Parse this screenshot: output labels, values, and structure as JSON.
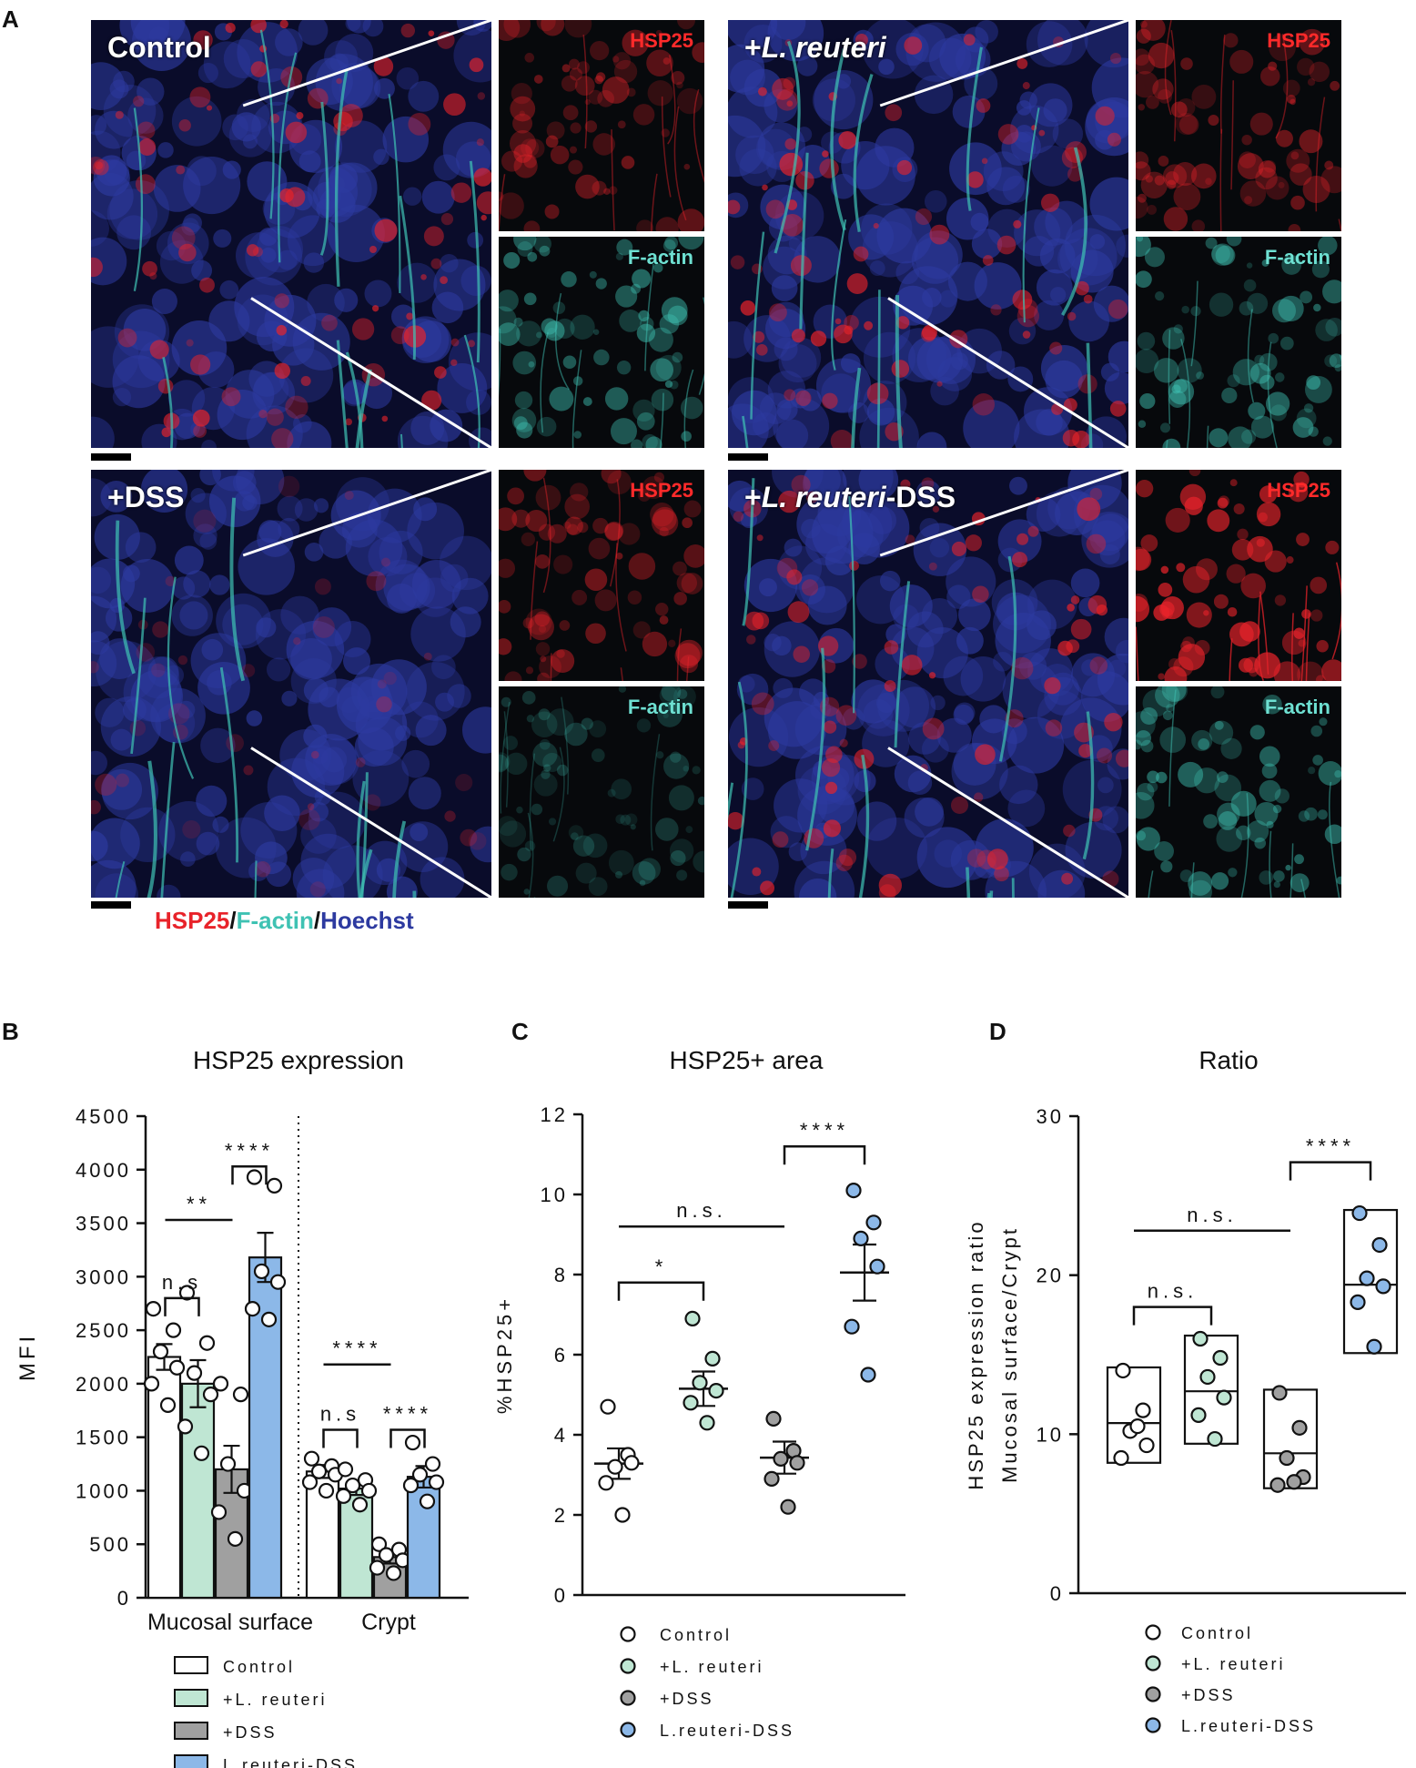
{
  "panel_labels": {
    "a": "A",
    "b": "B",
    "c": "C",
    "d": "D"
  },
  "micrographs": [
    {
      "id": "control",
      "title": "Control",
      "title_parts": [
        {
          "t": "Control",
          "i": false
        }
      ],
      "inset_top": "HSP25",
      "inset_bottom": "F-actin"
    },
    {
      "id": "lreuteri",
      "title": "+L. reuteri",
      "title_parts": [
        {
          "t": "+",
          "i": false
        },
        {
          "t": "L. reuteri",
          "i": true
        }
      ],
      "inset_top": "HSP25",
      "inset_bottom": "F-actin"
    },
    {
      "id": "dss",
      "title": "+DSS",
      "title_parts": [
        {
          "t": "+DSS",
          "i": false
        }
      ],
      "inset_top": "HSP25",
      "inset_bottom": "F-actin"
    },
    {
      "id": "lreuteri_dss",
      "title": "+L. reuteri-DSS",
      "title_parts": [
        {
          "t": "+",
          "i": false
        },
        {
          "t": "L. reuteri",
          "i": true
        },
        {
          "t": "-DSS",
          "i": false
        }
      ],
      "inset_top": "HSP25",
      "inset_bottom": "F-actin"
    }
  ],
  "stain_legend": {
    "hsp": "HSP25",
    "sep1": "/",
    "factin": "F-actin",
    "sep2": "/",
    "hoechst": "Hoechst"
  },
  "colors": {
    "hsp": "#e8232a",
    "factin": "#3fc2b3",
    "hoechst": "#2d3aa0",
    "control": "#ffffff",
    "lreuteri": "#bfe6d3",
    "dss": "#a0a0a0",
    "lreuteri_dss": "#8cb8e8"
  },
  "chart_data": [
    {
      "panel": "B",
      "type": "bar",
      "title": "HSP25 expression",
      "ylabel": "MFI",
      "ylim": [
        0,
        4500
      ],
      "yticks": [
        0,
        500,
        1000,
        1500,
        2000,
        2500,
        3000,
        3500,
        4000,
        4500
      ],
      "groups": [
        "Mucosal surface",
        "Crypt"
      ],
      "series": [
        {
          "name": "Control",
          "values": [
            2250,
            1180
          ],
          "sem": [
            120,
            60
          ],
          "points": [
            [
              2700,
              2500,
              2300,
              2150,
              2000,
              1800
            ],
            [
              1300,
              1230,
              1180,
              1150,
              1080,
              1000
            ]
          ]
        },
        {
          "name": "+L. reuteri",
          "values": [
            2000,
            1020
          ],
          "sem": [
            220,
            60
          ],
          "points": [
            [
              2850,
              2380,
              2100,
              1900,
              1600,
              1350
            ],
            [
              1200,
              1100,
              1050,
              1000,
              950,
              870
            ]
          ]
        },
        {
          "name": "+DSS",
          "values": [
            1200,
            380
          ],
          "sem": [
            220,
            60
          ],
          "points": [
            [
              2000,
              1900,
              1250,
              1000,
              800,
              550
            ],
            [
              500,
              450,
              400,
              350,
              280,
              230
            ]
          ]
        },
        {
          "name": "L.reuteri-DSS",
          "values": [
            3180,
            1130
          ],
          "sem": [
            230,
            100
          ],
          "points": [
            [
              3930,
              3850,
              3050,
              2950,
              2700,
              2600
            ],
            [
              1450,
              1250,
              1150,
              1080,
              1050,
              900
            ]
          ]
        }
      ],
      "annotations": [
        {
          "text": "n.s",
          "x0": 0,
          "x1": 1,
          "group": 0,
          "y": 2800,
          "bracket": true
        },
        {
          "text": "**",
          "x0": 0,
          "x1": 2,
          "group": 0,
          "y": 3530,
          "bracket": false
        },
        {
          "text": "****",
          "x0": 2,
          "x1": 3,
          "group": 0,
          "y": 4030,
          "bracket": true
        },
        {
          "text": "n.s",
          "x0": 0,
          "x1": 1,
          "group": 1,
          "y": 1570,
          "bracket": true
        },
        {
          "text": "****",
          "x0": 0,
          "x1": 2,
          "group": 1,
          "y": 2180,
          "bracket": false
        },
        {
          "text": "****",
          "x0": 2,
          "x1": 3,
          "group": 1,
          "y": 1570,
          "bracket": true
        }
      ]
    },
    {
      "panel": "C",
      "type": "scatter",
      "title": "HSP25+ area",
      "ylabel": "%HSP25+",
      "ylim": [
        0,
        12
      ],
      "yticks": [
        0,
        2,
        4,
        6,
        8,
        10,
        12
      ],
      "categories": [
        "Control",
        "+L. reuteri",
        "+DSS",
        "L.reuteri-DSS"
      ],
      "series": [
        {
          "name": "Control",
          "mean": 3.28,
          "sem": 0.38,
          "points": [
            4.7,
            3.5,
            3.2,
            3.3,
            2.8,
            2.0
          ]
        },
        {
          "name": "+L. reuteri",
          "mean": 5.15,
          "sem": 0.43,
          "points": [
            6.9,
            5.9,
            5.3,
            5.1,
            4.8,
            4.3
          ]
        },
        {
          "name": "+DSS",
          "mean": 3.43,
          "sem": 0.4,
          "points": [
            4.4,
            3.6,
            3.4,
            3.3,
            2.9,
            2.2
          ]
        },
        {
          "name": "L.reuteri-DSS",
          "mean": 8.05,
          "sem": 0.7,
          "points": [
            10.1,
            9.3,
            8.9,
            8.2,
            6.7,
            5.5
          ]
        }
      ],
      "annotations": [
        {
          "text": "*",
          "x0": 0,
          "x1": 1,
          "y": 7.8,
          "bracket": true
        },
        {
          "text": "n.s.",
          "x0": 0,
          "x1": 2,
          "y": 9.2,
          "bracket": false
        },
        {
          "text": "****",
          "x0": 2,
          "x1": 3,
          "y": 11.2,
          "bracket": true
        }
      ]
    },
    {
      "panel": "D",
      "type": "box",
      "title": "Ratio",
      "ylabel": "Mucosal surface/Crypt",
      "ylabel2": "HSP25 expression ratio",
      "ylim": [
        0,
        30
      ],
      "yticks": [
        0,
        10,
        20,
        30
      ],
      "categories": [
        "Control",
        "+L. reuteri",
        "+DSS",
        "L.reuteri-DSS"
      ],
      "series": [
        {
          "name": "Control",
          "min": 8.2,
          "median": 10.7,
          "max": 14.2,
          "points": [
            14.0,
            11.5,
            10.2,
            9.3,
            8.5,
            10.5
          ]
        },
        {
          "name": "+L. reuteri",
          "min": 9.4,
          "median": 12.7,
          "max": 16.2,
          "points": [
            16.0,
            14.8,
            13.6,
            12.3,
            11.2,
            9.7
          ]
        },
        {
          "name": "+DSS",
          "min": 6.6,
          "median": 8.8,
          "max": 12.8,
          "points": [
            12.6,
            10.4,
            8.5,
            7.3,
            6.8,
            7.0
          ]
        },
        {
          "name": "L.reuteri-DSS",
          "min": 15.1,
          "median": 19.4,
          "max": 24.1,
          "points": [
            23.9,
            21.9,
            19.8,
            19.3,
            18.3,
            15.5
          ]
        }
      ],
      "annotations": [
        {
          "text": "n.s.",
          "x0": 0,
          "x1": 1,
          "y": 18.0,
          "bracket": true
        },
        {
          "text": "n.s.",
          "x0": 0,
          "x1": 2,
          "y": 22.8,
          "bracket": false
        },
        {
          "text": "****",
          "x0": 2,
          "x1": 3,
          "y": 27.1,
          "bracket": true
        }
      ]
    }
  ],
  "legends": {
    "b": [
      "Control",
      "+L. reuteri",
      "+DSS",
      "L.reuteri-DSS"
    ],
    "c": [
      "Control",
      "+L. reuteri",
      "+DSS",
      "L.reuteri-DSS"
    ],
    "d": [
      "Control",
      "+L. reuteri",
      "+DSS",
      "L.reuteri-DSS"
    ]
  }
}
